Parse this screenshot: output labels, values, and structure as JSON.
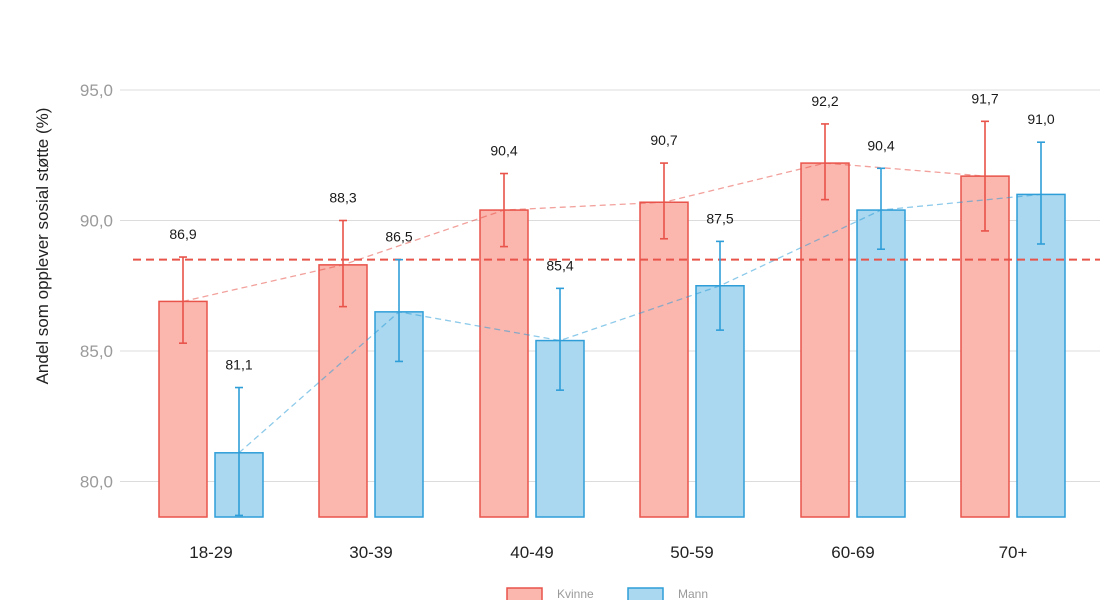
{
  "chart_data": {
    "type": "bar",
    "ylabel": "Andel som opplever sosial støtte (%)",
    "xlabel": "",
    "ylim": [
      78.7,
      97.8
    ],
    "yticks": [
      80,
      85,
      90,
      95
    ],
    "ytick_labels": [
      "80,0",
      "85,0",
      "90,0",
      "95,0"
    ],
    "grid": true,
    "legend_position": "bottom",
    "categories": [
      "18-29",
      "30-39",
      "40-49",
      "50-59",
      "60-69",
      "70+"
    ],
    "reference_line": {
      "value": 88.5,
      "style": "dashed",
      "color": "#e8534a"
    },
    "series": [
      {
        "name": "Kvinne",
        "fill": "#fbb6ae",
        "stroke": "#e8534a",
        "values": [
          86.9,
          88.3,
          90.4,
          90.7,
          92.2,
          91.7
        ],
        "value_labels": [
          "86,9",
          "88,3",
          "90,4",
          "90,7",
          "92,2",
          "91,7"
        ],
        "error_low": [
          85.3,
          86.7,
          89.0,
          89.3,
          90.8,
          89.6
        ],
        "error_high": [
          88.6,
          90.0,
          91.8,
          92.2,
          93.7,
          93.8
        ]
      },
      {
        "name": "Mann",
        "fill": "#a9d8f0",
        "stroke": "#2f9ed8",
        "values": [
          81.1,
          86.5,
          85.4,
          87.5,
          90.4,
          91.0
        ],
        "value_labels": [
          "81,1",
          "86,5",
          "85,4",
          "87,5",
          "90,4",
          "91,0"
        ],
        "error_low": [
          78.7,
          84.6,
          83.5,
          85.8,
          88.9,
          89.1
        ],
        "error_high": [
          83.6,
          88.5,
          87.4,
          89.2,
          92.0,
          93.0
        ]
      }
    ]
  }
}
